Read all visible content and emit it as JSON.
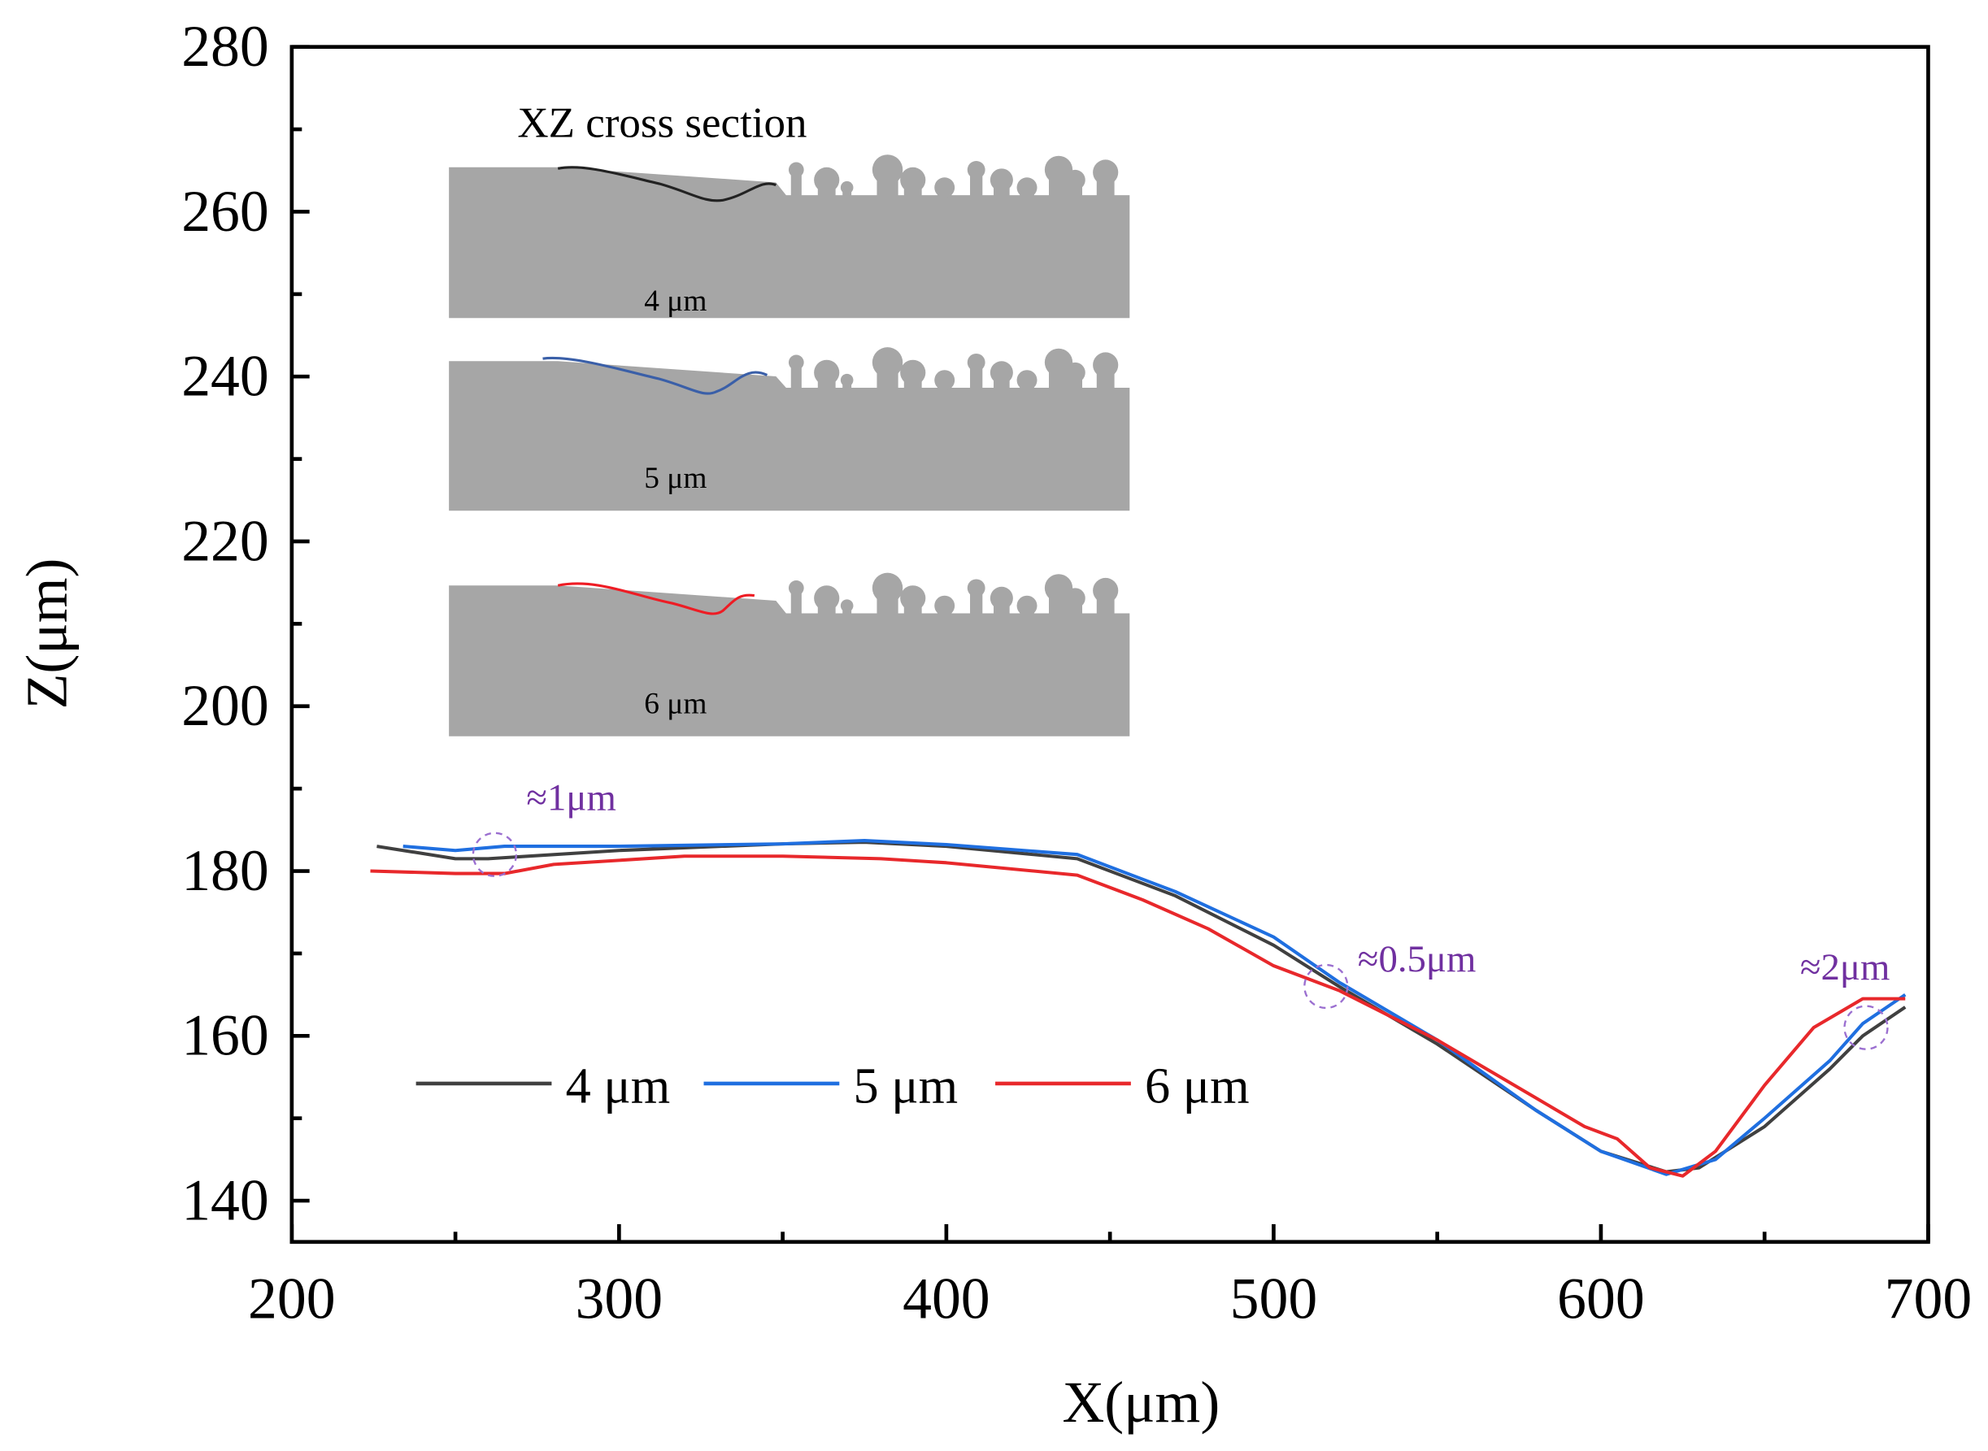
{
  "chart_data": {
    "type": "line",
    "title": "",
    "xlabel": "X(μm)",
    "ylabel": "Z(μm)",
    "xlim": [
      200,
      700
    ],
    "ylim": [
      135,
      280
    ],
    "xticks": [
      200,
      300,
      400,
      500,
      600,
      700
    ],
    "yticks": [
      140,
      160,
      180,
      200,
      220,
      240,
      260,
      280
    ],
    "grid": false,
    "legend_placement": "lower-left",
    "series": [
      {
        "name": "4 μm",
        "color": "#404040",
        "x": [
          226,
          250,
          260,
          300,
          350,
          375,
          400,
          440,
          470,
          500,
          520,
          550,
          580,
          600,
          620,
          630,
          650,
          670,
          680,
          693
        ],
        "y": [
          183,
          181.5,
          181.5,
          182.5,
          183.3,
          183.5,
          183,
          181.5,
          177,
          171,
          166,
          159,
          151,
          146,
          143.5,
          144,
          149,
          156,
          160,
          163.5
        ]
      },
      {
        "name": "5 μm",
        "color": "#1f6fe0",
        "x": [
          234,
          250,
          265,
          300,
          350,
          375,
          400,
          440,
          470,
          500,
          520,
          550,
          580,
          600,
          620,
          635,
          650,
          670,
          680,
          693
        ],
        "y": [
          183,
          182.5,
          183,
          183,
          183.3,
          183.7,
          183.2,
          182,
          177.5,
          172,
          166.5,
          159.5,
          151,
          146,
          143.2,
          145,
          150,
          157,
          161.5,
          165
        ]
      },
      {
        "name": "6 μm",
        "color": "#e8282b",
        "x": [
          224,
          250,
          265,
          280,
          300,
          320,
          350,
          380,
          400,
          440,
          460,
          480,
          500,
          520,
          550,
          580,
          595,
          605,
          615,
          625,
          635,
          650,
          665,
          680,
          693
        ],
        "y": [
          180,
          179.7,
          179.7,
          180.8,
          181.3,
          181.8,
          181.8,
          181.5,
          181,
          179.5,
          176.5,
          173,
          168.5,
          165.5,
          159.5,
          152.5,
          149,
          147.5,
          144,
          143,
          146,
          154,
          161,
          164.5,
          164.5
        ]
      }
    ],
    "annotations": [
      {
        "text": "≈1μm",
        "x": 262,
        "y": 182
      },
      {
        "text": "≈0.5μm",
        "x": 516,
        "y": 166
      },
      {
        "text": "≈2μm",
        "x": 681,
        "y": 161
      }
    ],
    "inset": {
      "title": "XZ cross section",
      "panels": [
        {
          "label": "4 μm",
          "color": "#222222"
        },
        {
          "label": "5 μm",
          "color": "#3a5fa8"
        },
        {
          "label": "6 μm",
          "color": "#ee1c24"
        }
      ]
    }
  }
}
